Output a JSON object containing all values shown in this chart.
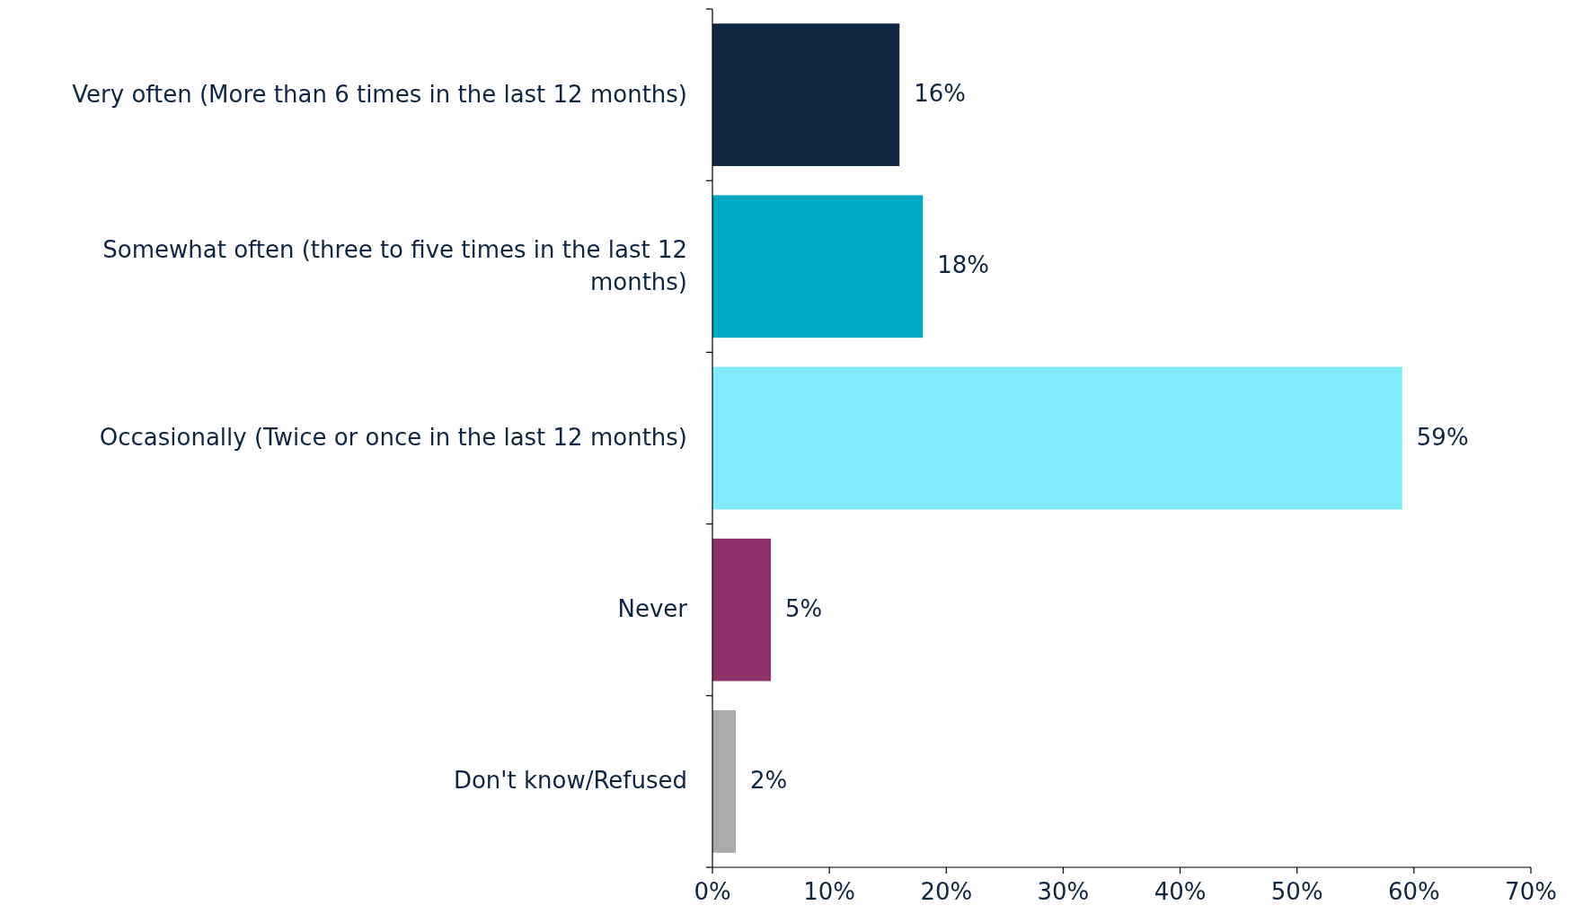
{
  "chart_data": {
    "type": "bar",
    "orientation": "horizontal",
    "categories": [
      "Very often (More than 6 times in the last 12 months)",
      "Somewhat often (three to five times in the last 12 months)",
      "Occasionally (Twice or once in the last 12 months)",
      "Never",
      "Don't know/Refused"
    ],
    "values": [
      16,
      18,
      59,
      5,
      2
    ],
    "colors": [
      "#0f2540",
      "#00a9c1",
      "#80ebfd",
      "#8e336a",
      "#aaaaaa"
    ],
    "xlim": [
      0,
      70
    ],
    "xticks": [
      {
        "value": 0,
        "label": "0%"
      },
      {
        "value": 10,
        "label": "10%"
      },
      {
        "value": 20,
        "label": "20%"
      },
      {
        "value": 30,
        "label": "30%"
      },
      {
        "value": 40,
        "label": "40%"
      },
      {
        "value": 50,
        "label": "50%"
      },
      {
        "value": 60,
        "label": "60%"
      },
      {
        "value": 70,
        "label": "70%"
      }
    ],
    "value_labels": [
      "16%",
      "18%",
      "59%",
      "5%",
      "2%"
    ],
    "grid": false
  }
}
